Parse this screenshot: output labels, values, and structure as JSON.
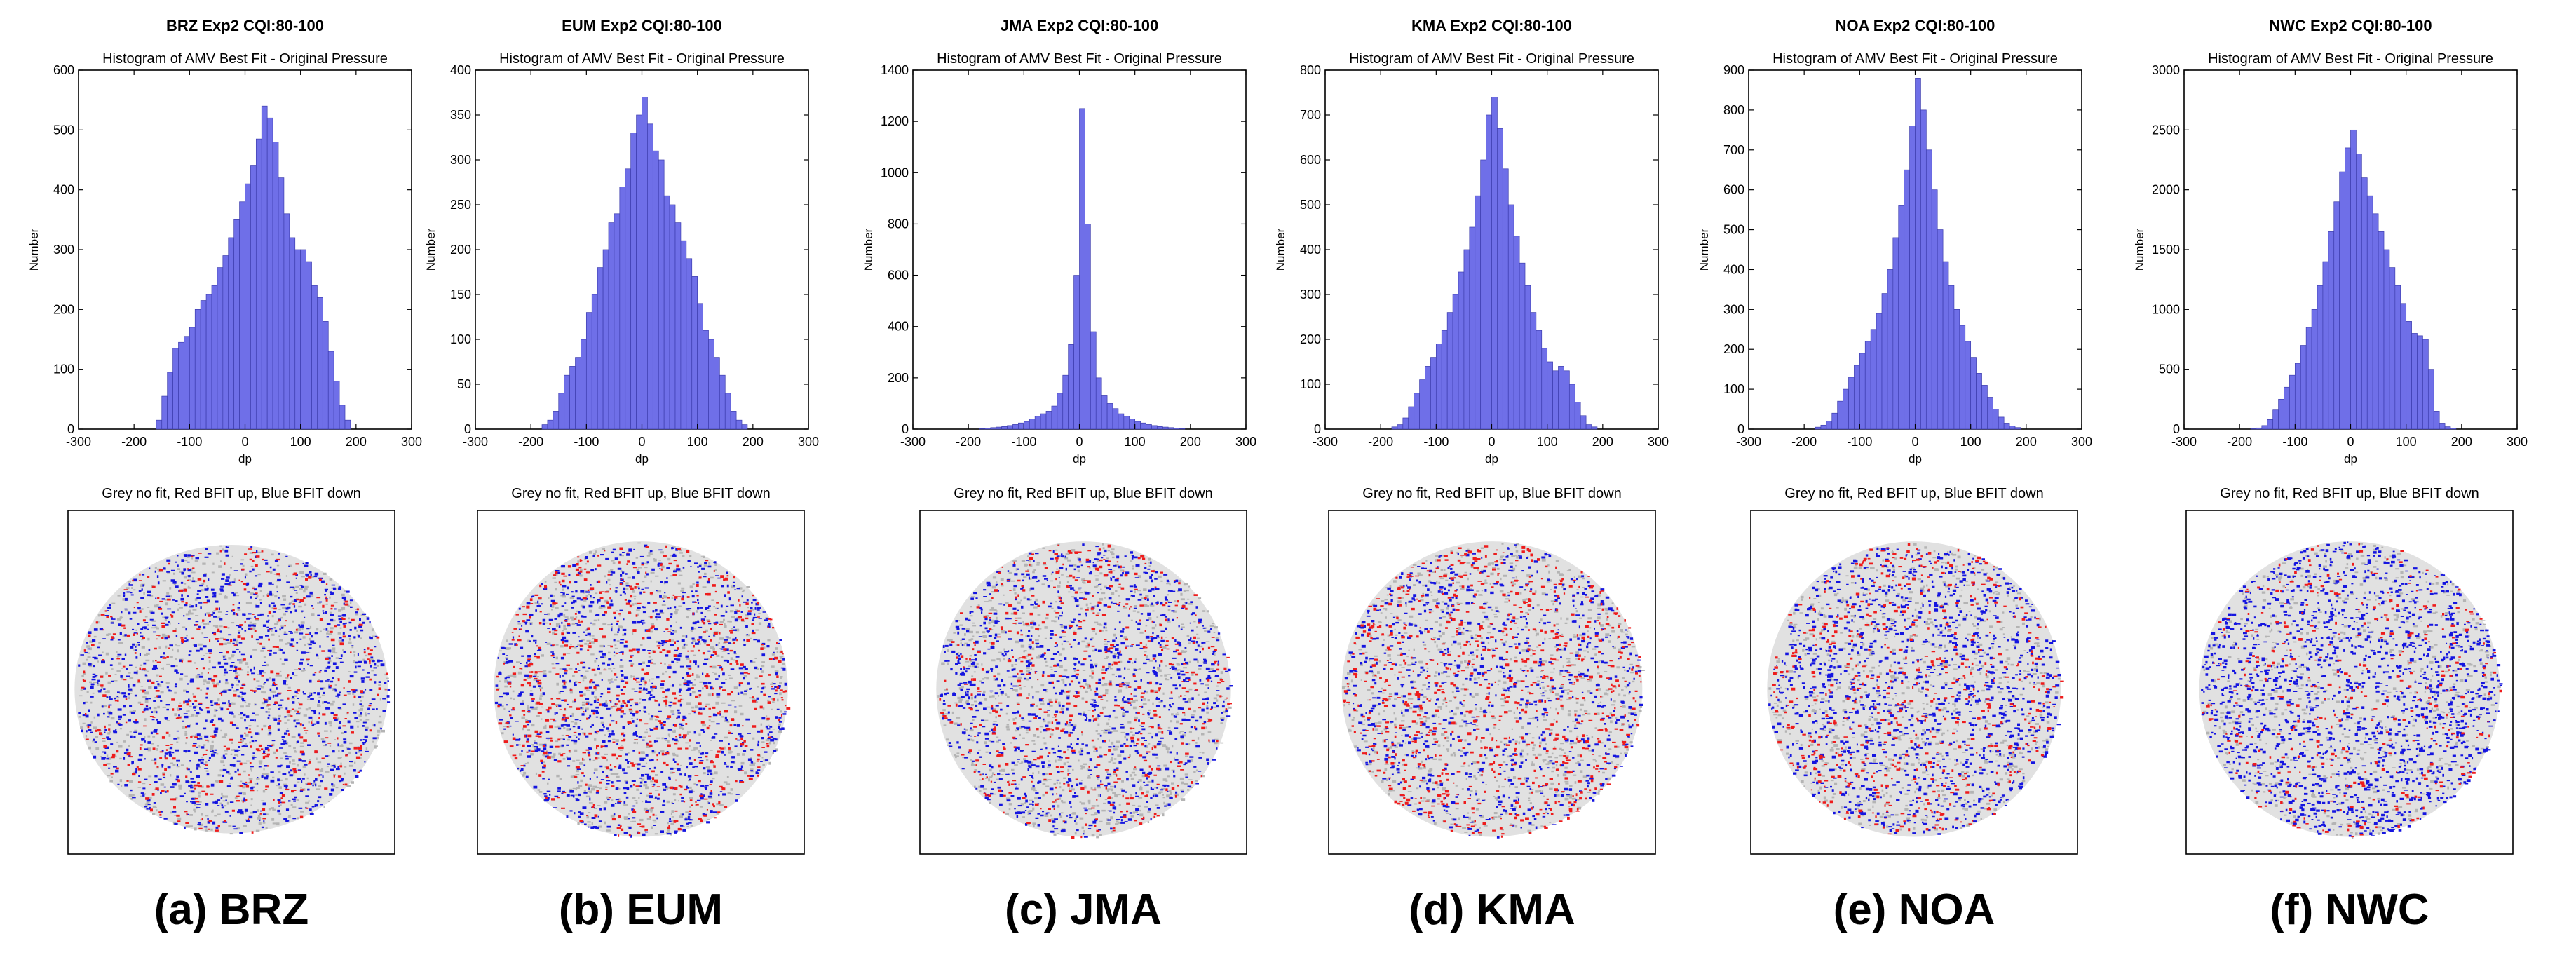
{
  "figure": {
    "colors": {
      "bar_fill": "#6f6fe8",
      "bar_edge": "#3d3dae",
      "grey": "#c8c8c8",
      "red": "#ee1c1c",
      "blue": "#1515e0"
    },
    "panels": [
      {
        "id": "a",
        "header": "BRZ   Exp2  CQI:80-100",
        "map_title": "Grey no fit, Red BFIT up, Blue BFIT down",
        "caption": "(a) BRZ",
        "map_label": "BRZ AMV best-fit map"
      },
      {
        "id": "b",
        "header": "EUM   Exp2  CQI:80-100",
        "map_title": "Grey no fit, Red BFIT up, Blue BFIT down",
        "caption": "(b) EUM",
        "map_label": "EUM AMV best-fit map"
      },
      {
        "id": "c",
        "header": "JMA   Exp2  CQI:80-100",
        "map_title": "Grey no fit, Red BFIT up, Blue BFIT down",
        "caption": "(c) JMA",
        "map_label": "JMA AMV best-fit map"
      },
      {
        "id": "d",
        "header": "KMA   Exp2  CQI:80-100",
        "map_title": "Grey no fit, Red BFIT up, Blue BFIT down",
        "caption": "(d) KMA",
        "map_label": "KMA AMV best-fit map"
      },
      {
        "id": "e",
        "header": "NOA   Exp2  CQI:80-100",
        "map_title": "Grey no fit, Red BFIT up, Blue BFIT down",
        "caption": "(e) NOA",
        "map_label": "NOA AMV best-fit map"
      },
      {
        "id": "f",
        "header": "NWC   Exp2  CQI:80-100",
        "map_title": "Grey no fit, Red BFIT up, Blue BFIT down",
        "caption": "(f) NWC",
        "map_label": "NWC AMV best-fit map"
      }
    ]
  },
  "chart_data": [
    {
      "type": "bar",
      "title": "Histogram of AMV Best Fit - Original Pressure",
      "xlabel": "dp",
      "ylabel": "Number",
      "xlim": [
        -300,
        300
      ],
      "ylim": [
        0,
        600
      ],
      "bin_width": 10,
      "xticks": [
        -300,
        -200,
        -100,
        0,
        100,
        200,
        300
      ],
      "yticks": [
        0,
        100,
        200,
        300,
        400,
        500,
        600
      ],
      "bins_start": [
        -160,
        -150,
        -140,
        -130,
        -120,
        -110,
        -100,
        -90,
        -80,
        -70,
        -60,
        -50,
        -40,
        -30,
        -20,
        -10,
        0,
        10,
        20,
        30,
        40,
        50,
        60,
        70,
        80,
        90,
        100,
        110,
        120,
        130,
        140,
        150,
        160,
        170,
        180
      ],
      "values": [
        15,
        55,
        95,
        135,
        145,
        155,
        170,
        200,
        215,
        225,
        240,
        270,
        290,
        320,
        350,
        380,
        410,
        440,
        485,
        540,
        520,
        480,
        420,
        360,
        320,
        300,
        300,
        280,
        240,
        220,
        180,
        130,
        80,
        40,
        15
      ]
    },
    {
      "type": "bar",
      "title": "Histogram of AMV Best Fit - Original Pressure",
      "xlabel": "dp",
      "ylabel": "Number",
      "xlim": [
        -300,
        300
      ],
      "ylim": [
        0,
        400
      ],
      "bin_width": 10,
      "xticks": [
        -300,
        -200,
        -100,
        0,
        100,
        200,
        300
      ],
      "yticks": [
        0,
        50,
        100,
        150,
        200,
        250,
        300,
        350,
        400
      ],
      "bins_start": [
        -180,
        -170,
        -160,
        -150,
        -140,
        -130,
        -120,
        -110,
        -100,
        -90,
        -80,
        -70,
        -60,
        -50,
        -40,
        -30,
        -20,
        -10,
        0,
        10,
        20,
        30,
        40,
        50,
        60,
        70,
        80,
        90,
        100,
        110,
        120,
        130,
        140,
        150,
        160,
        170,
        180
      ],
      "values": [
        5,
        10,
        20,
        40,
        60,
        70,
        80,
        100,
        130,
        150,
        180,
        200,
        230,
        240,
        270,
        290,
        330,
        350,
        370,
        340,
        310,
        300,
        260,
        250,
        230,
        210,
        190,
        170,
        140,
        110,
        100,
        80,
        60,
        40,
        20,
        10,
        5
      ]
    },
    {
      "type": "bar",
      "title": "Histogram of AMV Best Fit - Original Pressure",
      "xlabel": "dp",
      "ylabel": "Number",
      "xlim": [
        -300,
        300
      ],
      "ylim": [
        0,
        1400
      ],
      "bin_width": 10,
      "xticks": [
        -300,
        -200,
        -100,
        0,
        100,
        200,
        300
      ],
      "yticks": [
        0,
        200,
        400,
        600,
        800,
        1000,
        1200,
        1400
      ],
      "bins_start": [
        -180,
        -170,
        -160,
        -150,
        -140,
        -130,
        -120,
        -110,
        -100,
        -90,
        -80,
        -70,
        -60,
        -50,
        -40,
        -30,
        -20,
        -10,
        0,
        10,
        20,
        30,
        40,
        50,
        60,
        70,
        80,
        90,
        100,
        110,
        120,
        130,
        140,
        150,
        160,
        170,
        180
      ],
      "values": [
        2,
        4,
        6,
        8,
        10,
        14,
        18,
        24,
        30,
        40,
        50,
        60,
        70,
        90,
        140,
        210,
        330,
        600,
        1250,
        800,
        380,
        200,
        130,
        100,
        80,
        60,
        50,
        40,
        30,
        24,
        18,
        14,
        10,
        8,
        6,
        4,
        2
      ]
    },
    {
      "type": "bar",
      "title": "Histogram of AMV Best Fit - Original Pressure",
      "xlabel": "dp",
      "ylabel": "Number",
      "xlim": [
        -300,
        300
      ],
      "ylim": [
        0,
        800
      ],
      "bin_width": 10,
      "xticks": [
        -300,
        -200,
        -100,
        0,
        100,
        200,
        300
      ],
      "yticks": [
        0,
        100,
        200,
        300,
        400,
        500,
        600,
        700,
        800
      ],
      "bins_start": [
        -180,
        -170,
        -160,
        -150,
        -140,
        -130,
        -120,
        -110,
        -100,
        -90,
        -80,
        -70,
        -60,
        -50,
        -40,
        -30,
        -20,
        -10,
        0,
        10,
        20,
        30,
        40,
        50,
        60,
        70,
        80,
        90,
        100,
        110,
        120,
        130,
        140,
        150,
        160,
        170,
        180
      ],
      "values": [
        5,
        10,
        25,
        50,
        80,
        110,
        140,
        160,
        190,
        220,
        260,
        300,
        350,
        400,
        450,
        520,
        600,
        700,
        740,
        670,
        580,
        500,
        430,
        370,
        320,
        260,
        220,
        180,
        150,
        130,
        140,
        130,
        100,
        60,
        30,
        10,
        5
      ]
    },
    {
      "type": "bar",
      "title": "Histogram of AMV Best Fit - Original Pressure",
      "xlabel": "dp",
      "ylabel": "Number",
      "xlim": [
        -300,
        300
      ],
      "ylim": [
        0,
        900
      ],
      "bin_width": 10,
      "xticks": [
        -300,
        -200,
        -100,
        0,
        100,
        200,
        300
      ],
      "yticks": [
        0,
        100,
        200,
        300,
        400,
        500,
        600,
        700,
        800,
        900
      ],
      "bins_start": [
        -180,
        -170,
        -160,
        -150,
        -140,
        -130,
        -120,
        -110,
        -100,
        -90,
        -80,
        -70,
        -60,
        -50,
        -40,
        -30,
        -20,
        -10,
        0,
        10,
        20,
        30,
        40,
        50,
        60,
        70,
        80,
        90,
        100,
        110,
        120,
        130,
        140,
        150,
        160,
        170,
        180
      ],
      "values": [
        5,
        10,
        20,
        40,
        70,
        100,
        130,
        160,
        190,
        220,
        250,
        290,
        340,
        400,
        480,
        560,
        650,
        760,
        880,
        800,
        700,
        600,
        500,
        420,
        360,
        300,
        260,
        220,
        180,
        140,
        110,
        80,
        50,
        30,
        15,
        8,
        4
      ]
    },
    {
      "type": "bar",
      "title": "Histogram of AMV Best Fit - Original Pressure",
      "xlabel": "dp",
      "ylabel": "Number",
      "xlim": [
        -300,
        300
      ],
      "ylim": [
        0,
        3000
      ],
      "bin_width": 10,
      "xticks": [
        -300,
        -200,
        -100,
        0,
        100,
        200,
        300
      ],
      "yticks": [
        0,
        500,
        1000,
        1500,
        2000,
        2500,
        3000
      ],
      "bins_start": [
        -180,
        -170,
        -160,
        -150,
        -140,
        -130,
        -120,
        -110,
        -100,
        -90,
        -80,
        -70,
        -60,
        -50,
        -40,
        -30,
        -20,
        -10,
        0,
        10,
        20,
        30,
        40,
        50,
        60,
        70,
        80,
        90,
        100,
        110,
        120,
        130,
        140,
        150,
        160,
        170,
        180
      ],
      "values": [
        5,
        10,
        30,
        80,
        160,
        250,
        350,
        450,
        550,
        700,
        850,
        1000,
        1200,
        1400,
        1650,
        1900,
        2150,
        2350,
        2500,
        2300,
        2100,
        1950,
        1800,
        1650,
        1500,
        1350,
        1200,
        1050,
        900,
        800,
        780,
        750,
        500,
        150,
        50,
        20,
        8
      ]
    }
  ]
}
